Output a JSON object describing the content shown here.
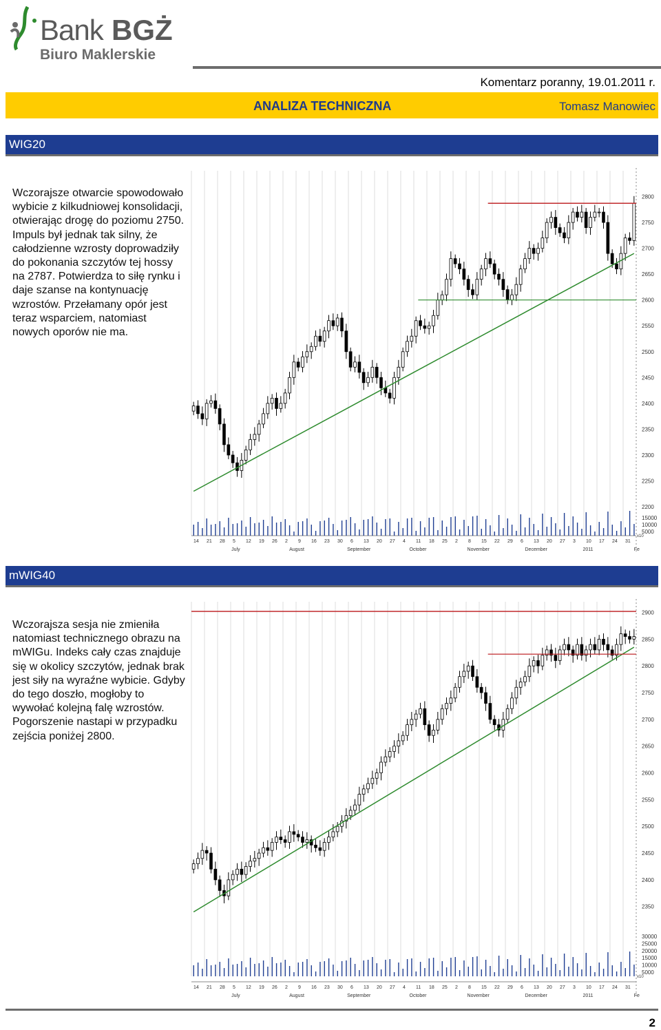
{
  "header": {
    "logo_bank": "Bank",
    "logo_bgz": "BGŻ",
    "logo_biuro": "Biuro Maklerskie",
    "komentarz": "Komentarz poranny, 19.01.2011 r.",
    "title": "ANALIZA TECHNICZNA",
    "author": "Tomasz Manowiec"
  },
  "colors": {
    "accent_bar": "#ffcc00",
    "section_bar": "#1e3d91",
    "support_line": "#2e8b2e",
    "resistance_line": "#c0282b"
  },
  "sections": [
    {
      "title": "WIG20",
      "paragraph": "Wczorajsze otwarcie spowodowało wybicie z kilkudniowej konsolidacji, otwierając drogę do poziomu 2750. Impuls był jednak tak silny, że całodzienne wzrosty doprowadziły do pokonania szczytów tej hossy na 2787. Potwierdza to siłę rynku i daje szanse na kontynuację wzrostów. Przełamany opór jest teraz wsparciem, natomiast nowych oporów nie ma."
    },
    {
      "title": "mWIG40",
      "paragraph": "Wczorajsza sesja nie zmieniła natomiast technicznego obrazu na mWIGu. Indeks cały czas znajduje się w okolicy szczytów, jednak brak jest siły na wyraźne wybicie. Gdyby do tego doszło, mogłoby to wywołać kolejną falę wzrostów. Pogorszenie nastapi w przypadku zejścia poniżej 2800."
    }
  ],
  "chart_data": [
    {
      "type": "candlestick",
      "title": "",
      "y_ticks": [
        2200,
        2250,
        2300,
        2350,
        2400,
        2450,
        2500,
        2550,
        2600,
        2650,
        2700,
        2750,
        2800
      ],
      "ylim": [
        2200,
        2850
      ],
      "volume_ticks": [
        "15000",
        "10000",
        "5000"
      ],
      "volume_unit": "x10",
      "x_day_ticks": [
        "14",
        "21",
        "28",
        "5",
        "12",
        "19",
        "26",
        "2",
        "9",
        "16",
        "23",
        "30",
        "6",
        "13",
        "20",
        "27",
        "4",
        "11",
        "18",
        "25",
        "2",
        "8",
        "15",
        "22",
        "29",
        "6",
        "13",
        "20",
        "27",
        "3",
        "10",
        "17",
        "24",
        "31"
      ],
      "x_month_labels": [
        "July",
        "August",
        "September",
        "October",
        "November",
        "December",
        "2011",
        "Fe"
      ],
      "series_close": [
        2395,
        2380,
        2370,
        2400,
        2405,
        2390,
        2360,
        2320,
        2300,
        2285,
        2270,
        2290,
        2310,
        2330,
        2340,
        2360,
        2380,
        2400,
        2410,
        2390,
        2400,
        2420,
        2450,
        2480,
        2470,
        2490,
        2500,
        2510,
        2530,
        2520,
        2540,
        2560,
        2550,
        2565,
        2540,
        2500,
        2470,
        2480,
        2460,
        2440,
        2450,
        2470,
        2450,
        2430,
        2420,
        2410,
        2450,
        2470,
        2500,
        2520,
        2530,
        2560,
        2550,
        2545,
        2550,
        2570,
        2600,
        2610,
        2640,
        2680,
        2670,
        2660,
        2640,
        2620,
        2610,
        2640,
        2660,
        2680,
        2670,
        2650,
        2640,
        2620,
        2600,
        2610,
        2630,
        2660,
        2680,
        2700,
        2690,
        2700,
        2720,
        2750,
        2760,
        2740,
        2730,
        2720,
        2750,
        2770,
        2760,
        2770,
        2740,
        2760,
        2770,
        2770,
        2750,
        2690,
        2670,
        2660,
        2690,
        2720,
        2715,
        2787
      ],
      "support_line": {
        "from": [
          0,
          2230
        ],
        "to": [
          101,
          2690
        ]
      },
      "resistance_line": {
        "level": 2787
      },
      "support_horizontal": {
        "level": 2600
      }
    },
    {
      "type": "candlestick",
      "title": "",
      "y_ticks": [
        2350,
        2400,
        2450,
        2500,
        2550,
        2600,
        2650,
        2700,
        2750,
        2800,
        2850,
        2900
      ],
      "ylim": [
        2320,
        2920
      ],
      "volume_ticks": [
        "30000",
        "25000",
        "20000",
        "15000",
        "10000",
        "5000"
      ],
      "volume_unit": "x10",
      "x_day_ticks": [
        "14",
        "21",
        "28",
        "5",
        "12",
        "19",
        "26",
        "2",
        "9",
        "16",
        "23",
        "30",
        "6",
        "13",
        "20",
        "27",
        "4",
        "11",
        "18",
        "25",
        "2",
        "8",
        "15",
        "22",
        "29",
        "6",
        "13",
        "20",
        "27",
        "3",
        "10",
        "17",
        "24",
        "31"
      ],
      "x_month_labels": [
        "July",
        "August",
        "September",
        "October",
        "November",
        "December",
        "2011",
        "Fe"
      ],
      "series_close": [
        2430,
        2440,
        2455,
        2450,
        2420,
        2400,
        2380,
        2370,
        2400,
        2410,
        2420,
        2410,
        2425,
        2435,
        2440,
        2450,
        2460,
        2455,
        2470,
        2480,
        2475,
        2470,
        2490,
        2485,
        2480,
        2470,
        2475,
        2465,
        2460,
        2455,
        2470,
        2480,
        2490,
        2500,
        2510,
        2520,
        2530,
        2540,
        2560,
        2570,
        2580,
        2590,
        2600,
        2620,
        2630,
        2640,
        2650,
        2660,
        2670,
        2690,
        2700,
        2710,
        2720,
        2690,
        2670,
        2680,
        2700,
        2720,
        2730,
        2740,
        2760,
        2780,
        2790,
        2800,
        2780,
        2760,
        2750,
        2730,
        2700,
        2690,
        2680,
        2700,
        2720,
        2740,
        2760,
        2770,
        2780,
        2800,
        2810,
        2800,
        2820,
        2830,
        2820,
        2810,
        2830,
        2840,
        2830,
        2820,
        2840,
        2820,
        2830,
        2840,
        2830,
        2850,
        2840,
        2830,
        2820,
        2840,
        2860,
        2855,
        2850,
        2855
      ],
      "support_line": {
        "from": [
          0,
          2340
        ],
        "to": [
          101,
          2835
        ]
      },
      "resistance_line": {
        "level": 2902
      },
      "support_horizontal": {
        "level": 2822
      }
    }
  ]
}
